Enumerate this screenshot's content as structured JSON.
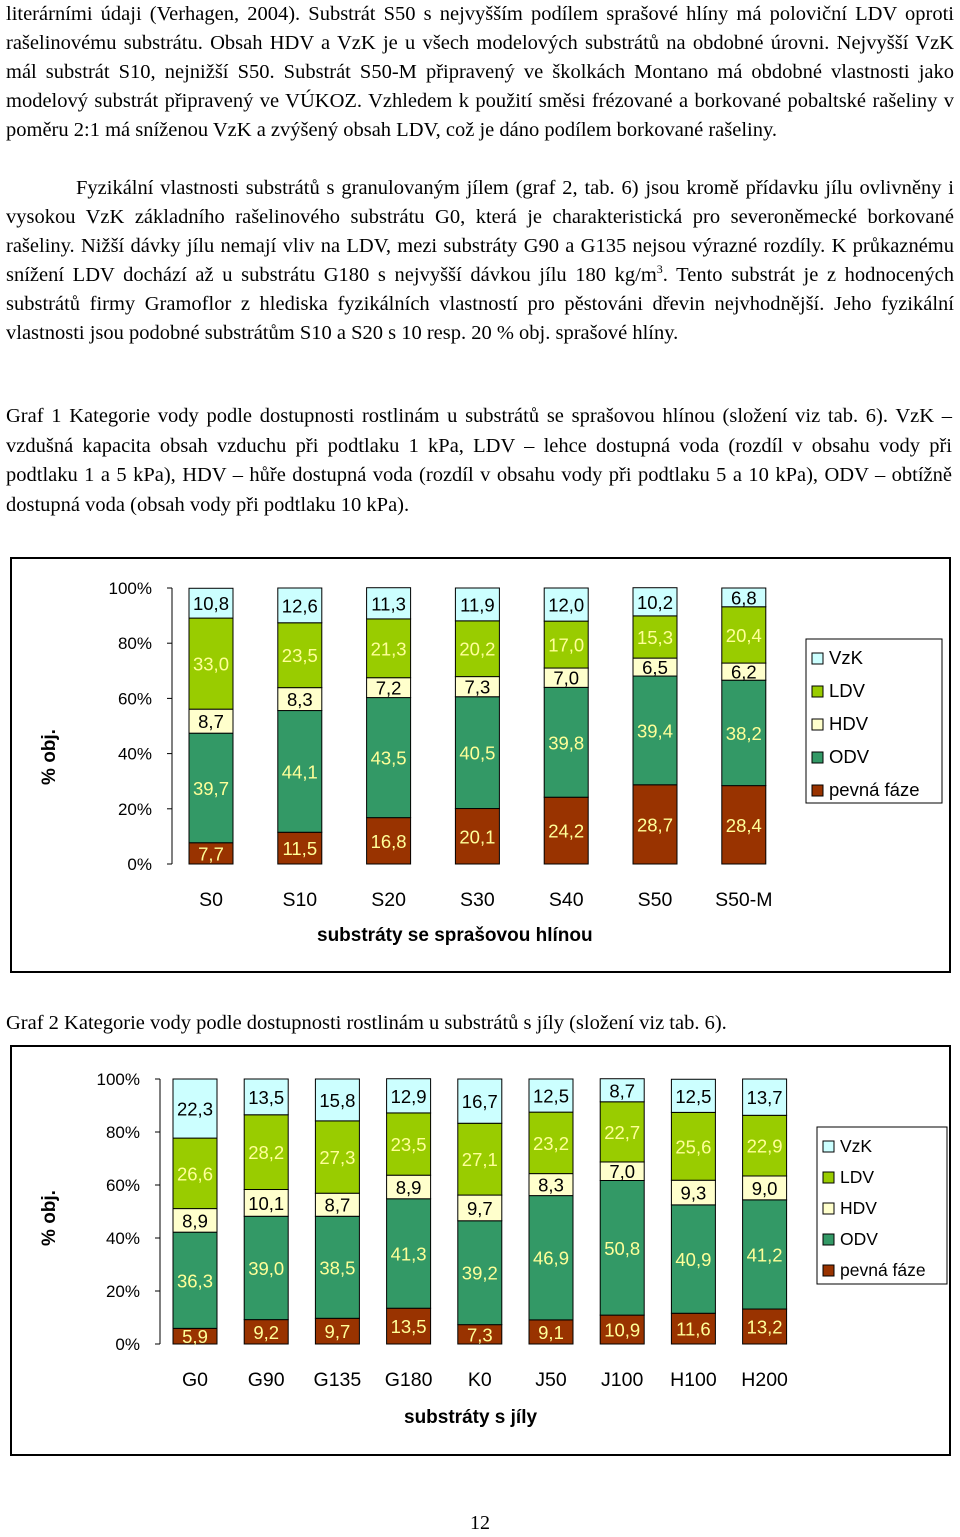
{
  "text": {
    "para1": "literárními údaji (Verhagen, 2004). Substrát S50 s nejvyšším podílem sprašové hlíny má poloviční LDV oproti rašelinovému substrátu. Obsah HDV a VzK je u všech modelových substrátů na obdobné úrovni. Nejvyšší VzK mál substrát S10, nejnižší S50. Substrát S50-M připravený ve školkách Montano má obdobné vlastnosti jako modelový substrát připravený ve VÚKOZ. Vzhledem k použití směsi frézované a borkované pobaltské rašeliny v poměru 2:1 má sníženou VzK a zvýšený obsah LDV, což je dáno podílem borkované rašeliny.",
    "para2a": "Fyzikální vlastnosti substrátů s granulovaným jílem (graf 2, tab. 6) jsou kromě přídavku jílu ovlivněny i vysokou VzK základního rašelinového substrátu G0, která je charakteristická pro severoněmecké borkované rašeliny. Nižší dávky jílu nemají vliv na LDV, mezi substráty G90 a G135 nejsou výrazné rozdíly. K průkaznému snížení LDV dochází až u substrátu G180 s nejvyšší dávkou jílu 180 kg/m",
    "para2_sup": "3",
    "para2b": ". Tento substrát je z hodnocených substrátů firmy Gramoflor z hlediska fyzikálních vlastností pro pěstováni dřevin nejvhodnější. Jeho fyzikální vlastnosti jsou  podobné substrátům S10 a S20 s 10 resp. 20 % obj. sprašové hlíny.",
    "caption1": "Graf 1 Kategorie vody podle dostupnosti rostlinám u substrátů se sprašovou hlínou (složení viz tab. 6). VzK – vzdušná kapacita obsah vzduchu při podtlaku 1 kPa, LDV – lehce dostupná voda (rozdíl v obsahu vody při podtlaku 1 a 5 kPa), HDV – hůře dostupná voda (rozdíl v obsahu vody při podtlaku 5 a 10 kPa), ODV – obtížně dostupná voda (obsah vody při podtlaku 10 kPa).",
    "caption2": "Graf 2 Kategorie vody podle dostupnosti rostlinám u substrátů s jíly (složení viz tab. 6).",
    "page_number": "12"
  },
  "colors": {
    "VzK": "#ccffff",
    "LDV": "#99cc00",
    "HDV": "#ffffcc",
    "ODV": "#339966",
    "pevna_faze": "#993300",
    "label_text": "#ffff99",
    "label_text_light": "#000000"
  },
  "chart_data": [
    {
      "type": "bar",
      "stacked": true,
      "title": "",
      "xlabel": "substráty se sprašovou hlínou",
      "ylabel": "% obj.",
      "ylim": [
        0,
        100
      ],
      "yticks": [
        "0%",
        "20%",
        "40%",
        "60%",
        "80%",
        "100%"
      ],
      "legend_position": "right",
      "categories": [
        "S0",
        "S10",
        "S20",
        "S30",
        "S40",
        "S50",
        "S50-M"
      ],
      "series": [
        {
          "name": "pevná fáze",
          "key": "pevna_faze",
          "values": [
            7.7,
            11.5,
            16.8,
            20.1,
            24.2,
            28.7,
            28.4
          ],
          "labels": [
            "7,7",
            "11,5",
            "16,8",
            "20,1",
            "24,2",
            "28,7",
            "28,4"
          ]
        },
        {
          "name": "ODV",
          "key": "ODV",
          "values": [
            39.7,
            44.1,
            43.5,
            40.5,
            39.8,
            39.4,
            38.2
          ],
          "labels": [
            "39,7",
            "44,1",
            "43,5",
            "40,5",
            "39,8",
            "39,4",
            "38,2"
          ]
        },
        {
          "name": "HDV",
          "key": "HDV",
          "values": [
            8.7,
            8.3,
            7.2,
            7.3,
            7.0,
            6.5,
            6.2
          ],
          "labels": [
            "8,7",
            "8,3",
            "7,2",
            "7,3",
            "7,0",
            "6,5",
            "6,2"
          ]
        },
        {
          "name": "LDV",
          "key": "LDV",
          "values": [
            33.0,
            23.5,
            21.3,
            20.2,
            17.0,
            15.3,
            20.4
          ],
          "labels": [
            "33,0",
            "23,5",
            "21,3",
            "20,2",
            "17,0",
            "15,3",
            "20,4"
          ]
        },
        {
          "name": "VzK",
          "key": "VzK",
          "values": [
            10.8,
            12.6,
            11.3,
            11.9,
            12.0,
            10.2,
            6.8
          ],
          "labels": [
            "10,8",
            "12,6",
            "11,3",
            "11,9",
            "12,0",
            "10,2",
            "6,8"
          ]
        }
      ],
      "legend": [
        "VzK",
        "LDV",
        "HDV",
        "ODV",
        "pevná fáze"
      ]
    },
    {
      "type": "bar",
      "stacked": true,
      "title": "",
      "xlabel": "substráty s jíly",
      "ylabel": "% obj.",
      "ylim": [
        0,
        100
      ],
      "yticks": [
        "0%",
        "20%",
        "40%",
        "60%",
        "80%",
        "100%"
      ],
      "legend_position": "right",
      "categories": [
        "G0",
        "G90",
        "G135",
        "G180",
        "K0",
        "J50",
        "J100",
        "H100",
        "H200"
      ],
      "series": [
        {
          "name": "pevná fáze",
          "key": "pevna_faze",
          "values": [
            5.9,
            9.2,
            9.7,
            13.5,
            7.3,
            9.1,
            10.9,
            11.6,
            13.2
          ],
          "labels": [
            "5,9",
            "9,2",
            "9,7",
            "13,5",
            "7,3",
            "9,1",
            "10,9",
            "11,6",
            "13,2"
          ]
        },
        {
          "name": "ODV",
          "key": "ODV",
          "values": [
            36.3,
            39.0,
            38.5,
            41.3,
            39.2,
            46.9,
            50.8,
            40.9,
            41.2
          ],
          "labels": [
            "36,3",
            "39,0",
            "38,5",
            "41,3",
            "39,2",
            "46,9",
            "50,8",
            "40,9",
            "41,2"
          ]
        },
        {
          "name": "HDV",
          "key": "HDV",
          "values": [
            8.9,
            10.1,
            8.7,
            8.9,
            9.7,
            8.3,
            7.0,
            9.3,
            9.0
          ],
          "labels": [
            "8,9",
            "10,1",
            "8,7",
            "8,9",
            "9,7",
            "8,3",
            "7,0",
            "9,3",
            "9,0"
          ]
        },
        {
          "name": "LDV",
          "key": "LDV",
          "values": [
            26.6,
            28.2,
            27.3,
            23.5,
            27.1,
            23.2,
            22.7,
            25.6,
            22.9
          ],
          "labels": [
            "26,6",
            "28,2",
            "27,3",
            "23,5",
            "27,1",
            "23,2",
            "22,7",
            "25,6",
            "22,9"
          ]
        },
        {
          "name": "VzK",
          "key": "VzK",
          "values": [
            22.3,
            13.5,
            15.8,
            12.9,
            16.7,
            12.5,
            8.7,
            12.5,
            13.7
          ],
          "labels": [
            "22,3",
            "13,5",
            "15,8",
            "12,9",
            "16,7",
            "12,5",
            "8,7",
            "12,5",
            "13,7"
          ]
        }
      ],
      "legend": [
        "VzK",
        "LDV",
        "HDV",
        "ODV",
        "pevná fáze"
      ]
    }
  ]
}
